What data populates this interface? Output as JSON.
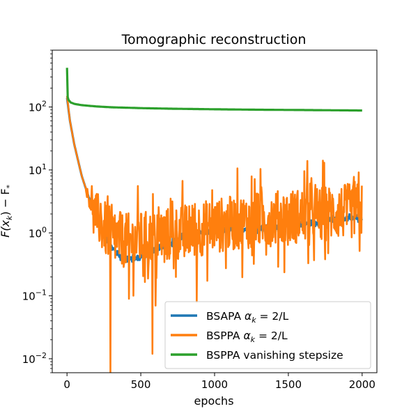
{
  "chart_data": {
    "type": "line",
    "title": "Tomographic reconstruction",
    "xlabel": "epochs",
    "ylabel": "F(x_k) − F_*",
    "ylabel_main": "F(x",
    "ylabel_k": "k",
    "ylabel_mid": ") − F",
    "ylabel_star": "*",
    "yscale": "log",
    "xlim": [
      -100,
      2100
    ],
    "ylim": [
      0.006,
      800
    ],
    "x_ticks": [
      {
        "value": 0,
        "label": "0"
      },
      {
        "value": 500,
        "label": "500"
      },
      {
        "value": 1000,
        "label": "1000"
      },
      {
        "value": 1500,
        "label": "1500"
      },
      {
        "value": 2000,
        "label": "2000"
      }
    ],
    "y_ticks": [
      {
        "value": 0.01,
        "base": "10",
        "exp": "−2"
      },
      {
        "value": 0.1,
        "base": "10",
        "exp": "−1"
      },
      {
        "value": 1,
        "base": "10",
        "exp": "0"
      },
      {
        "value": 10,
        "base": "10",
        "exp": "1"
      },
      {
        "value": 100,
        "base": "10",
        "exp": "2"
      }
    ],
    "legend_position": "lower-right",
    "series": [
      {
        "name": "BSAPA αk = 2/L",
        "legend": {
          "prefix": "BSAPA ",
          "alpha": "α",
          "sub": "k",
          "suffix": " = 2/L"
        },
        "color": "#1f77b4",
        "noise": 0.05,
        "x": [
          0,
          20,
          50,
          100,
          150,
          200,
          250,
          300,
          350,
          400,
          450,
          500,
          600,
          700,
          800,
          900,
          1000,
          1100,
          1200,
          1300,
          1400,
          1500,
          1600,
          1700,
          1800,
          1900,
          2000
        ],
        "values": [
          140,
          60,
          25,
          8,
          3.5,
          1.8,
          1.0,
          0.6,
          0.45,
          0.38,
          0.38,
          0.42,
          0.55,
          0.7,
          0.85,
          1.0,
          1.05,
          1.1,
          1.15,
          1.2,
          1.25,
          1.3,
          1.4,
          1.5,
          1.6,
          1.7,
          1.8
        ]
      },
      {
        "name": "BSPPA αk = 2/L",
        "legend": {
          "prefix": "BSPPA ",
          "alpha": "α",
          "sub": "k",
          "suffix": " = 2/L"
        },
        "color": "#ff7f0e",
        "noise": 0.55,
        "x": [
          0,
          20,
          50,
          100,
          150,
          200,
          250,
          300,
          350,
          400,
          450,
          500,
          600,
          700,
          800,
          900,
          1000,
          1100,
          1200,
          1300,
          1400,
          1500,
          1600,
          1700,
          1800,
          1900,
          2000
        ],
        "values": [
          150,
          60,
          25,
          8,
          3.5,
          1.9,
          1.2,
          0.9,
          0.8,
          0.75,
          0.75,
          0.8,
          0.85,
          0.95,
          1.05,
          1.15,
          1.3,
          1.4,
          1.5,
          1.6,
          1.7,
          1.8,
          1.9,
          2.0,
          2.1,
          2.2,
          2.3
        ],
        "spikes": [
          {
            "x": 295,
            "y": 0.006
          },
          {
            "x": 420,
            "y": 0.09
          },
          {
            "x": 580,
            "y": 0.012
          },
          {
            "x": 600,
            "y": 0.07
          },
          {
            "x": 880,
            "y": 0.08
          }
        ]
      },
      {
        "name": "BSPPA vanishing stepsize",
        "legend": {
          "prefix": "BSPPA vanishing stepsize",
          "alpha": "",
          "sub": "",
          "suffix": ""
        },
        "color": "#2ca02c",
        "noise": 0,
        "x": [
          0,
          1,
          3,
          10,
          25,
          50,
          100,
          200,
          300,
          500,
          700,
          1000,
          1300,
          1600,
          2000
        ],
        "values": [
          420,
          180,
          150,
          130,
          118,
          112,
          107,
          102,
          99,
          96,
          94,
          92,
          90.5,
          89.5,
          88
        ]
      }
    ]
  }
}
